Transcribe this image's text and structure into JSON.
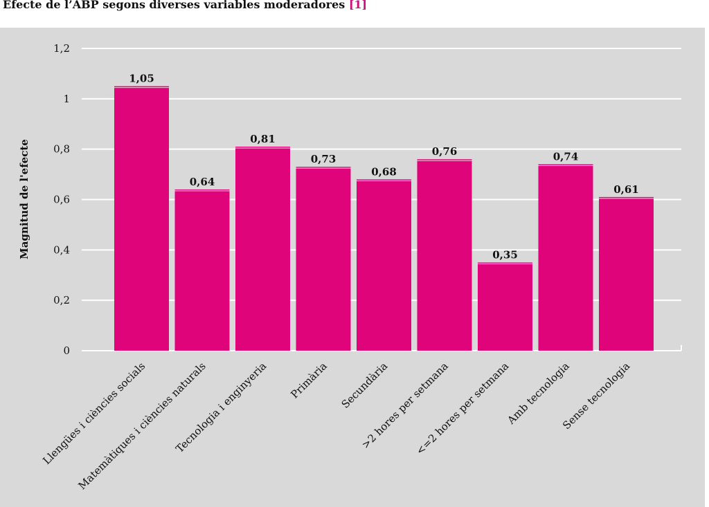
{
  "title": {
    "text": "Efecte de l’ABP segons diverses variables moderadores",
    "ref": "[1]"
  },
  "chart_data": {
    "type": "bar",
    "categories": [
      "Llengües i ciències socials",
      "Matemàtiques i ciències naturals",
      "Tecnologia i enginyeria",
      "Primària",
      "Secundària",
      ">2 hores per setmana",
      "<=2 hores per setmana",
      "Amb tecnologia",
      "Sense tecnologia"
    ],
    "values": [
      1.05,
      0.64,
      0.81,
      0.73,
      0.68,
      0.76,
      0.35,
      0.74,
      0.61
    ],
    "value_labels": [
      "1,05",
      "0,64",
      "0,81",
      "0,73",
      "0,68",
      "0,76",
      "0,35",
      "0,74",
      "0,61"
    ],
    "ylabel": "Magnitud de l'efecte",
    "ylim": [
      0,
      1.2
    ],
    "yticks": [
      0,
      0.2,
      0.4,
      0.6,
      0.8,
      1,
      1.2
    ],
    "ytick_labels": [
      "0",
      "0,2",
      "0,4",
      "0,6",
      "0,8",
      "1",
      "1,2"
    ],
    "grid": true,
    "colors": {
      "bar": "#e0047a",
      "background": "#d9d9d9",
      "grid": "#ffffff"
    }
  }
}
